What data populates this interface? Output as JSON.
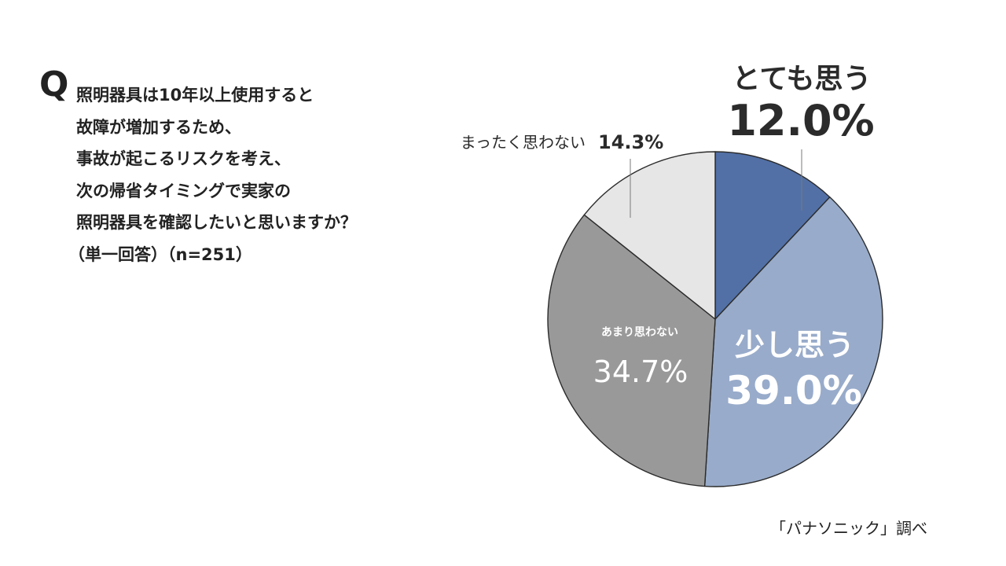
{
  "question": {
    "mark": "Q",
    "lines": [
      "照明器具は10年以上使用すると",
      "故障が増加するため、",
      "事故が起こるリスクを考え、",
      "次の帰省タイミングで実家の",
      "照明器具を確認したいと思いますか？",
      "（単一回答）（n=251）"
    ]
  },
  "source": "「パナソニック」調べ",
  "chart_data": {
    "type": "pie",
    "start": "12 o'clock, clockwise",
    "slices": [
      {
        "label": "とても思う",
        "value": 12.0,
        "display": "12.0%",
        "color": "#5270a6"
      },
      {
        "label": "少し思う",
        "value": 39.0,
        "display": "39.0%",
        "color": "#98abca"
      },
      {
        "label": "あまり思わない",
        "value": 34.7,
        "display": "34.7%",
        "color": "#999999"
      },
      {
        "label": "まったく思わない",
        "value": 14.3,
        "display": "14.3%",
        "color": "#e6e6e6"
      }
    ]
  }
}
